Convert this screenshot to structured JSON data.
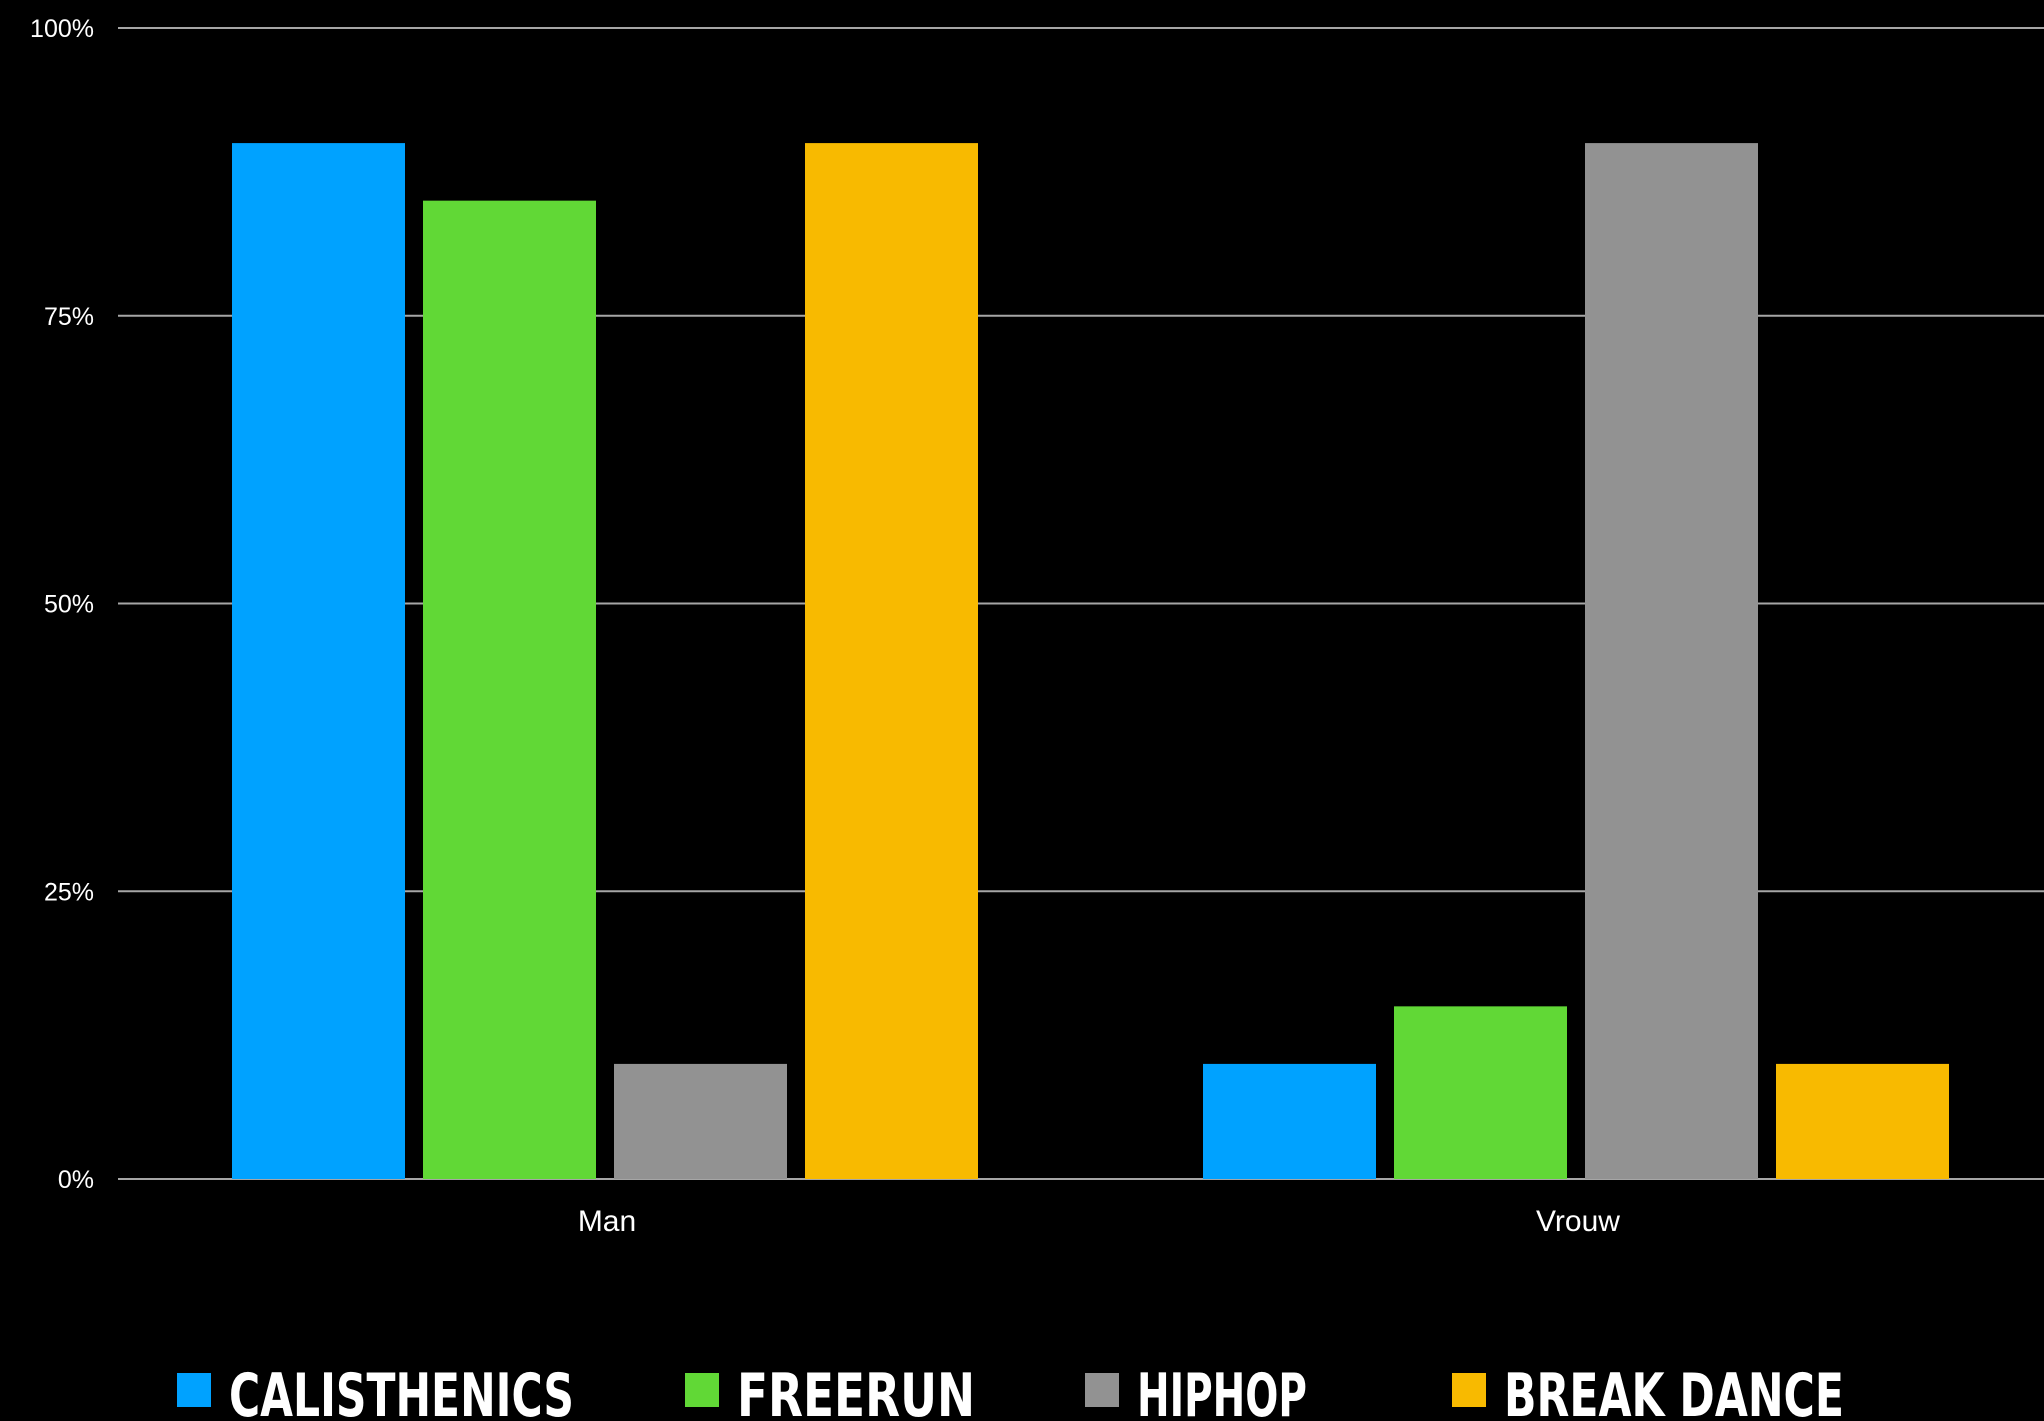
{
  "chart_data": {
    "type": "bar",
    "categories": [
      "Man",
      "Vrouw"
    ],
    "series": [
      {
        "name": "CALISTHENICS",
        "color": "#00a2ff",
        "values": [
          90,
          10
        ]
      },
      {
        "name": "FREERUN",
        "color": "#61d836",
        "values": [
          85,
          15
        ]
      },
      {
        "name": "HIPHOP",
        "color": "#929292",
        "values": [
          10,
          90
        ]
      },
      {
        "name": "BREAK DANCE",
        "color": "#f8ba00",
        "values": [
          90,
          10
        ]
      }
    ],
    "yticks": [
      "0%",
      "25%",
      "50%",
      "75%",
      "100%"
    ],
    "ylim": [
      0,
      100
    ],
    "grid": true,
    "legend": "bottom",
    "title": "",
    "xlabel": "",
    "ylabel": ""
  },
  "colors": {
    "background": "#000000",
    "gridline": "#a6a6a6",
    "text": "#ffffff"
  }
}
